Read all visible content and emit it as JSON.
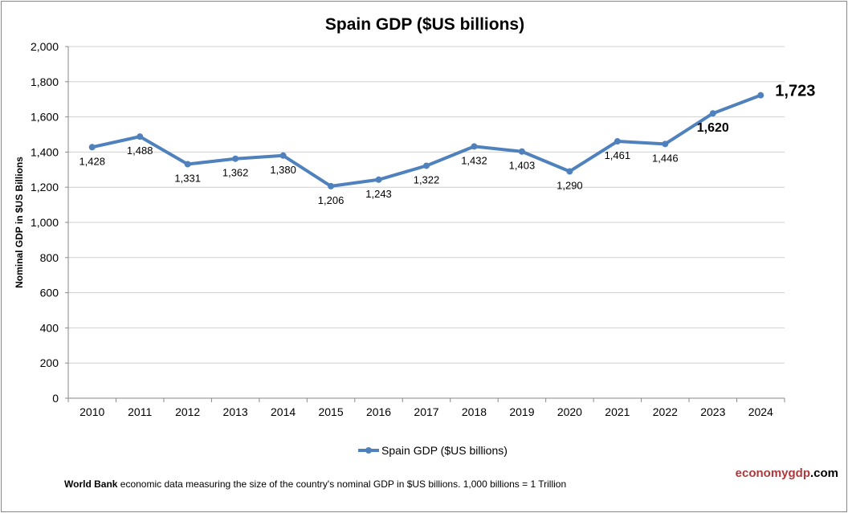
{
  "chart_data": {
    "type": "line",
    "title": "Spain GDP ($US billions)",
    "xlabel": "",
    "ylabel": "Nominal GDP in $US Billions",
    "categories": [
      "2010",
      "2011",
      "2012",
      "2013",
      "2014",
      "2015",
      "2016",
      "2017",
      "2018",
      "2019",
      "2020",
      "2021",
      "2022",
      "2023",
      "2024"
    ],
    "series": [
      {
        "name": "Spain GDP ($US billions)",
        "values": [
          1428,
          1488,
          1331,
          1362,
          1380,
          1206,
          1243,
          1322,
          1432,
          1403,
          1290,
          1461,
          1446,
          1620,
          1723
        ],
        "color": "#4f81bd"
      }
    ],
    "data_labels": [
      "1,428",
      "1,488",
      "1,331",
      "1,362",
      "1,380",
      "1,206",
      "1,243",
      "1,322",
      "1,432",
      "1,403",
      "1,290",
      "1,461",
      "1,446",
      "1,620",
      "1,723"
    ],
    "ylim": [
      0,
      2000
    ],
    "yticks": [
      "0",
      "200",
      "400",
      "600",
      "800",
      "1,000",
      "1,200",
      "1,400",
      "1,600",
      "1,800",
      "2,000"
    ],
    "grid": true,
    "legend": "bottom"
  },
  "footer": {
    "source": "World Bank",
    "text": " economic data  measuring the size of the country's nominal GDP in $US billions. 1,000 billions = 1 Trillion"
  },
  "brand": {
    "part1": "economygdp",
    "part2": ".com"
  }
}
